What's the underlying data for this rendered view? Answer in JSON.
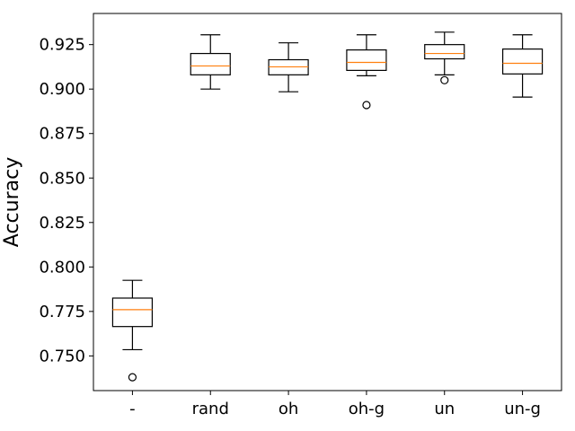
{
  "chart_data": {
    "type": "box",
    "title": "",
    "xlabel": "",
    "ylabel": "Accuracy",
    "ylim": [
      0.7305,
      0.9425
    ],
    "yticks": [
      0.75,
      0.775,
      0.8,
      0.825,
      0.85,
      0.875,
      0.9,
      0.925
    ],
    "ytick_labels": [
      "0.750",
      "0.775",
      "0.800",
      "0.825",
      "0.850",
      "0.875",
      "0.900",
      "0.925"
    ],
    "categories": [
      "-",
      "rand",
      "oh",
      "oh-g",
      "un",
      "un-g"
    ],
    "boxes": [
      {
        "category": "-",
        "whisker_low": 0.7535,
        "q1": 0.7665,
        "median": 0.776,
        "q3": 0.7825,
        "whisker_high": 0.7925,
        "outliers": [
          0.738
        ]
      },
      {
        "category": "rand",
        "whisker_low": 0.9,
        "q1": 0.908,
        "median": 0.913,
        "q3": 0.92,
        "whisker_high": 0.9305,
        "outliers": []
      },
      {
        "category": "oh",
        "whisker_low": 0.8985,
        "q1": 0.908,
        "median": 0.9125,
        "q3": 0.9165,
        "whisker_high": 0.926,
        "outliers": []
      },
      {
        "category": "oh-g",
        "whisker_low": 0.9075,
        "q1": 0.9105,
        "median": 0.915,
        "q3": 0.922,
        "whisker_high": 0.9305,
        "outliers": [
          0.891
        ]
      },
      {
        "category": "un",
        "whisker_low": 0.908,
        "q1": 0.917,
        "median": 0.92,
        "q3": 0.925,
        "whisker_high": 0.932,
        "outliers": [
          0.905
        ]
      },
      {
        "category": "un-g",
        "whisker_low": 0.8955,
        "q1": 0.9085,
        "median": 0.9145,
        "q3": 0.9225,
        "whisker_high": 0.9305,
        "outliers": []
      }
    ],
    "colors": {
      "box": "#000000",
      "median": "#ff7f0e",
      "background": "#ffffff"
    },
    "grid": false,
    "legend": "none"
  }
}
